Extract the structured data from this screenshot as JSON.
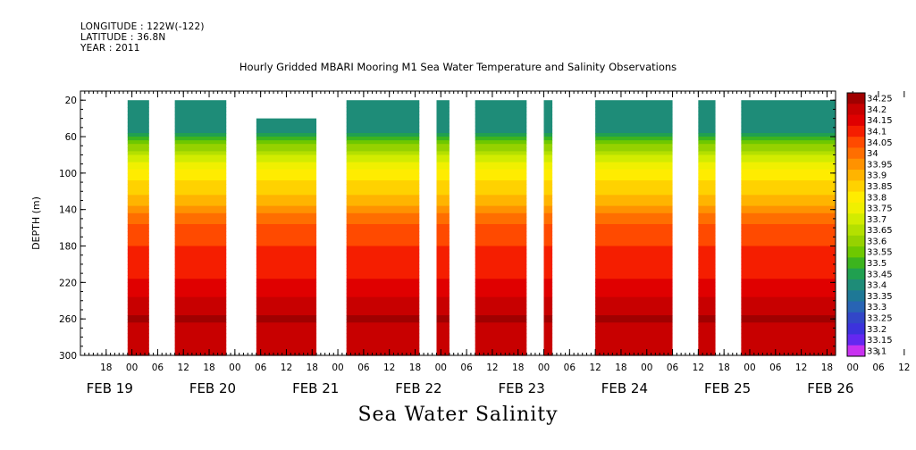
{
  "header": {
    "longitude": "LONGITUDE : 122W(-122)",
    "latitude": "LATITUDE : 36.8N",
    "year": "YEAR : 2011"
  },
  "chart_data": {
    "type": "heatmap",
    "title": "Hourly Gridded MBARI Mooring M1 Sea Water Temperature and Salinity Observations",
    "caption": "Sea Water Salinity",
    "ylabel": "DEPTH (m)",
    "ylim": [
      10,
      300
    ],
    "y_inverted": true,
    "y_ticks": [
      "20",
      "60",
      "100",
      "140",
      "180",
      "220",
      "260",
      "300"
    ],
    "x_hour_ticks": [
      "18",
      "00",
      "06",
      "12",
      "18",
      "00",
      "06",
      "12",
      "18",
      "00",
      "06",
      "12",
      "18",
      "00",
      "06",
      "12",
      "18",
      "00",
      "06",
      "12",
      "18",
      "00",
      "06",
      "12",
      "18",
      "00",
      "06",
      "12",
      "18",
      "00",
      "06",
      "12"
    ],
    "x_day_labels": [
      "FEB 19",
      "FEB 20",
      "FEB 21",
      "FEB 22",
      "FEB 23",
      "FEB 24",
      "FEB 25",
      "FEB 26"
    ],
    "x_range_hours": [
      "2011-02-19 12:00",
      "2011-02-26 20:00"
    ],
    "data_segments_hours": [
      {
        "start": "2011-02-19 23:00",
        "end": "2011-02-20 04:00",
        "top_depth": 20
      },
      {
        "start": "2011-02-20 10:00",
        "end": "2011-02-20 22:00",
        "top_depth": 20
      },
      {
        "start": "2011-02-21 05:00",
        "end": "2011-02-21 19:00",
        "top_depth": 40
      },
      {
        "start": "2011-02-22 02:00",
        "end": "2011-02-22 19:00",
        "top_depth": 20
      },
      {
        "start": "2011-02-22 23:00",
        "end": "2011-02-23 02:00",
        "top_depth": 20
      },
      {
        "start": "2011-02-23 08:00",
        "end": "2011-02-23 20:00",
        "top_depth": 20
      },
      {
        "start": "2011-02-24 00:00",
        "end": "2011-02-24 02:00",
        "top_depth": 20
      },
      {
        "start": "2011-02-24 12:00",
        "end": "2011-02-25 06:00",
        "top_depth": 20
      },
      {
        "start": "2011-02-25 12:00",
        "end": "2011-02-25 16:00",
        "top_depth": 20
      },
      {
        "start": "2011-02-25 22:00",
        "end": "2011-02-26 20:00",
        "top_depth": 20
      }
    ],
    "salinity_profile": [
      {
        "depth": 20,
        "salinity": 33.35
      },
      {
        "depth": 40,
        "salinity": 33.35
      },
      {
        "depth": 55,
        "salinity": 33.4
      },
      {
        "depth": 65,
        "salinity": 33.5
      },
      {
        "depth": 80,
        "salinity": 33.65
      },
      {
        "depth": 95,
        "salinity": 33.75
      },
      {
        "depth": 115,
        "salinity": 33.82
      },
      {
        "depth": 130,
        "salinity": 33.88
      },
      {
        "depth": 145,
        "salinity": 33.95
      },
      {
        "depth": 160,
        "salinity": 34.03
      },
      {
        "depth": 180,
        "salinity": 34.05
      },
      {
        "depth": 200,
        "salinity": 34.06
      },
      {
        "depth": 215,
        "salinity": 34.1
      },
      {
        "depth": 230,
        "salinity": 34.13
      },
      {
        "depth": 245,
        "salinity": 34.17
      },
      {
        "depth": 255,
        "salinity": 34.2
      },
      {
        "depth": 265,
        "salinity": 34.2
      },
      {
        "depth": 280,
        "salinity": 34.16
      },
      {
        "depth": 300,
        "salinity": 34.15
      }
    ],
    "legend": {
      "placement": "right",
      "levels": [
        "34.25",
        "34.2",
        "34.15",
        "34.1",
        "34.05",
        "34",
        "33.95",
        "33.9",
        "33.85",
        "33.8",
        "33.75",
        "33.7",
        "33.65",
        "33.6",
        "33.55",
        "33.5",
        "33.45",
        "33.4",
        "33.35",
        "33.3",
        "33.25",
        "33.2",
        "33.15",
        "33.1"
      ],
      "colors": [
        "#a00000",
        "#c80000",
        "#e00000",
        "#f51e00",
        "#ff4a00",
        "#ff6e00",
        "#ff9200",
        "#ffb400",
        "#ffd200",
        "#ffec00",
        "#f0f000",
        "#d2ec00",
        "#b4e000",
        "#96d200",
        "#6ec800",
        "#3cb41e",
        "#20a050",
        "#1e8c78",
        "#1e7896",
        "#2864b4",
        "#3246c8",
        "#3c32dc",
        "#6428f0",
        "#c832f0"
      ]
    }
  }
}
